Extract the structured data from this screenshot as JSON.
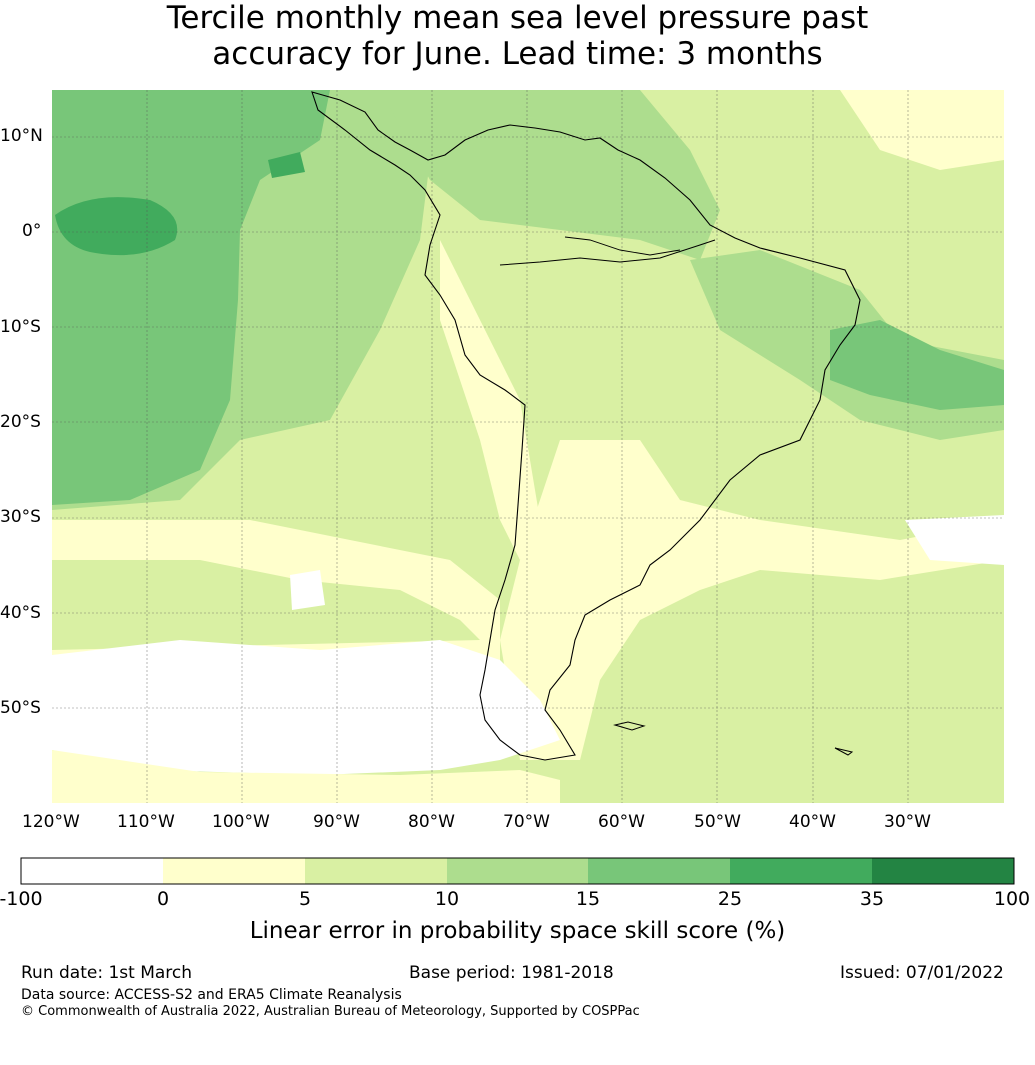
{
  "title": {
    "line1": "Tercile monthly mean sea level pressure past",
    "line2": "accuracy for June. Lead time: 3 months"
  },
  "map": {
    "lat_labels": [
      "10°N",
      "0°",
      "10°S",
      "20°S",
      "30°S",
      "40°S",
      "50°S"
    ],
    "lon_labels": [
      "120°W",
      "110°W",
      "100°W",
      "90°W",
      "80°W",
      "70°W",
      "60°W",
      "50°W",
      "40°W",
      "30°W"
    ],
    "lon_range": [
      -121,
      -21
    ],
    "lat_range": [
      -60,
      15
    ]
  },
  "colorbar": {
    "ticks": [
      "-100",
      "0",
      "5",
      "10",
      "15",
      "25",
      "35",
      "100"
    ],
    "colors": [
      "#ffffff",
      "#ffffcc",
      "#d9f0a3",
      "#addd8e",
      "#78c679",
      "#41ab5d",
      "#238443"
    ],
    "label": "Linear error in probability space skill score (%)"
  },
  "footer": {
    "run_date": "Run date: 1st March",
    "base_period": "Base period: 1981-2018",
    "issued": "Issued: 07/01/2022",
    "data_source": "Data source: ACCESS-S2 and ERA5 Climate Reanalysis",
    "copyright": "© Commonwealth of Australia 2022, Australian Bureau of Meteorology, Supported by COSPPac"
  }
}
